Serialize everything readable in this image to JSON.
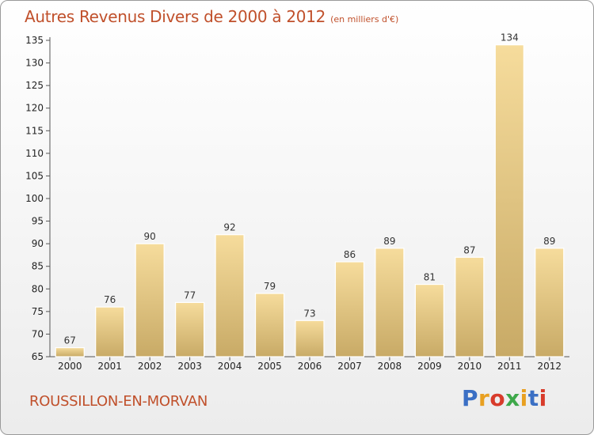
{
  "header": {
    "title": "Autres Revenus Divers de 2000 à 2012",
    "unit": "(en milliers d'€)"
  },
  "footer": {
    "commune": "ROUSSILLON-EN-MORVAN",
    "logo_letters": [
      "P",
      "r",
      "o",
      "x",
      "i",
      "t",
      "i"
    ],
    "logo_colors": [
      "#3a6fc4",
      "#e8a021",
      "#d83b2b",
      "#3ea84a",
      "#e8a021",
      "#3a6fc4",
      "#d83b2b"
    ]
  },
  "colors": {
    "title": "#c0502b",
    "bar_light": "#f6dc9c",
    "bar_dark": "#c8aa66"
  },
  "chart_data": {
    "type": "bar",
    "categories": [
      "2000",
      "2001",
      "2002",
      "2003",
      "2004",
      "2005",
      "2006",
      "2007",
      "2008",
      "2009",
      "2010",
      "2011",
      "2012"
    ],
    "values": [
      67,
      76,
      90,
      77,
      92,
      79,
      73,
      86,
      89,
      81,
      87,
      134,
      89
    ],
    "ylim": [
      65,
      135
    ],
    "yticks": [
      65,
      70,
      75,
      80,
      85,
      90,
      95,
      100,
      105,
      110,
      115,
      120,
      125,
      130,
      135
    ],
    "grid": false,
    "legend": "none"
  }
}
